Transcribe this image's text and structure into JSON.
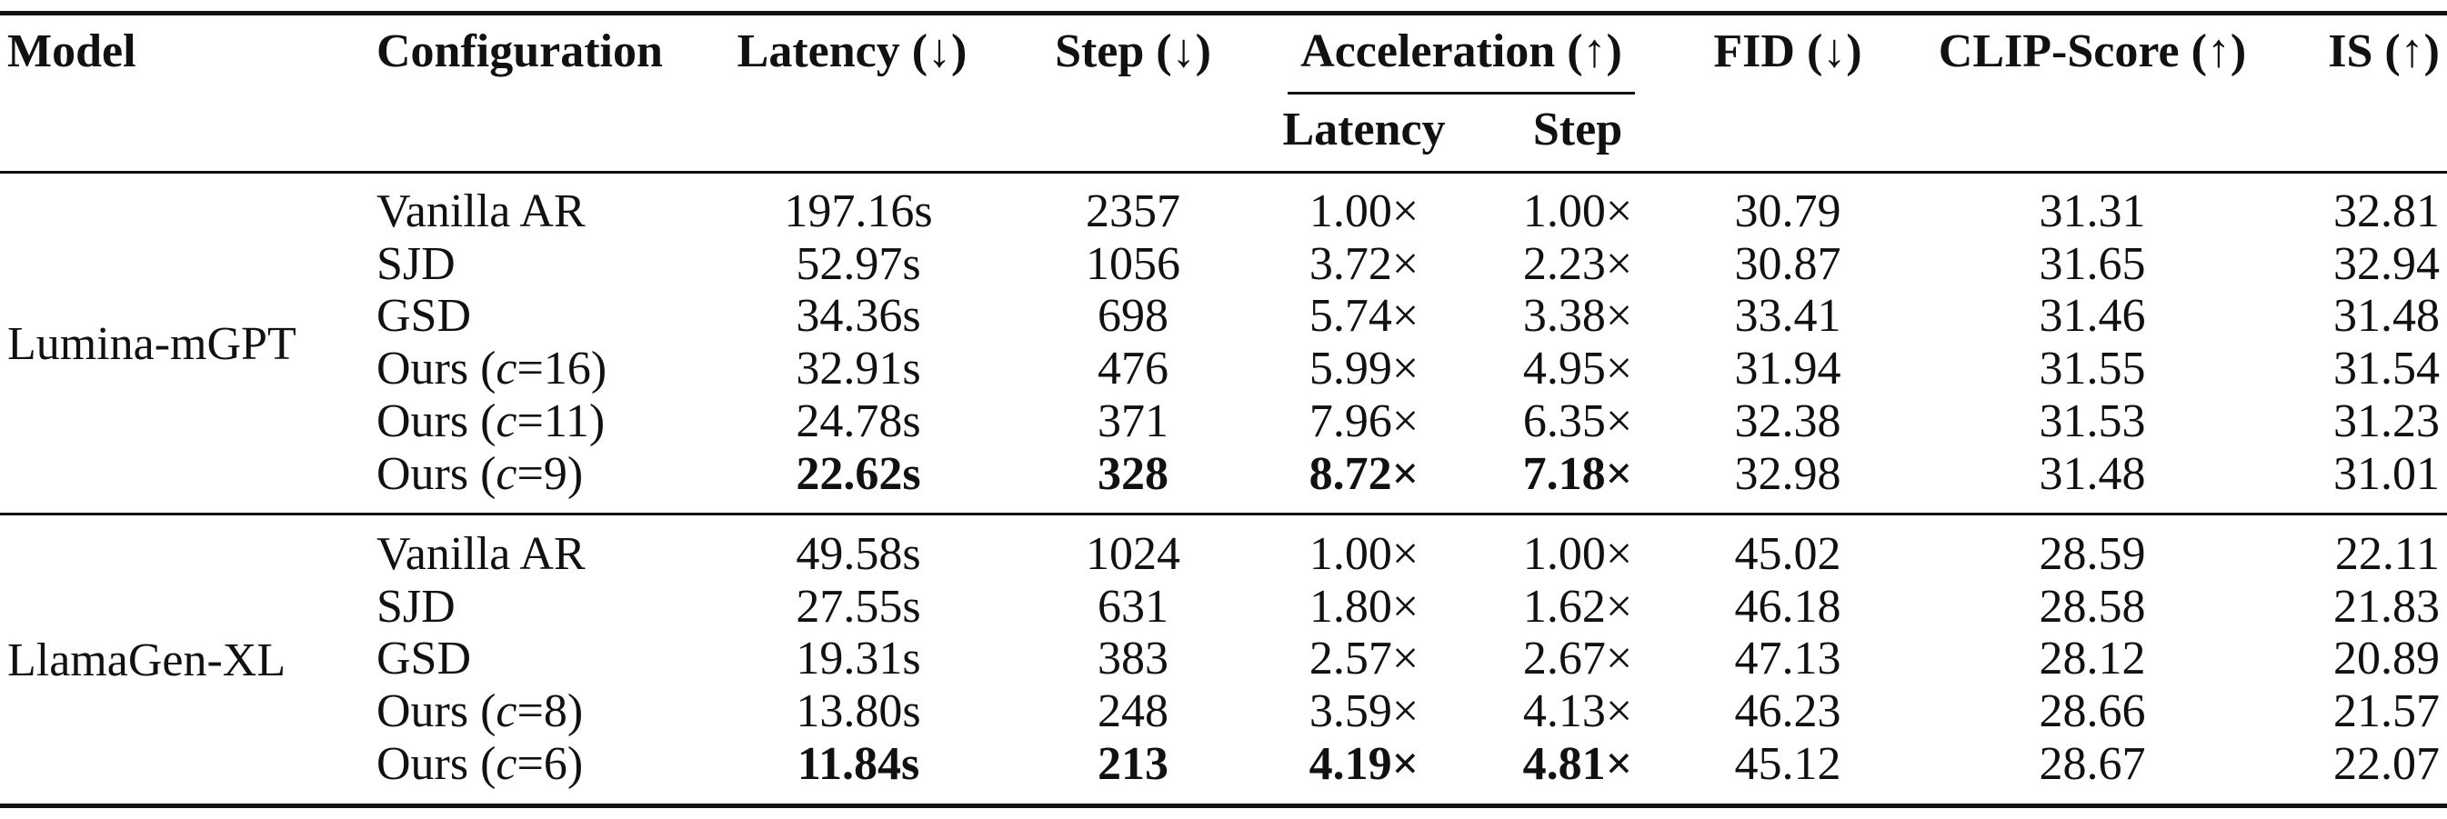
{
  "header": {
    "model": "Model",
    "configuration": "Configuration",
    "latency": "Latency (↓)",
    "step": "Step (↓)",
    "acceleration": "Acceleration (↑)",
    "acc_latency": "Latency",
    "acc_step": "Step",
    "fid": "FID (↓)",
    "clip": "CLIP-Score (↑)",
    "is": "IS (↑)"
  },
  "groups": [
    {
      "model": "Lumina-mGPT",
      "rows": [
        {
          "config": "Vanilla AR",
          "latency": "197.16s",
          "step": "2357",
          "acc_lat": "1.00×",
          "acc_step": "1.00×",
          "fid": "30.79",
          "clip": "31.31",
          "is": "32.81"
        },
        {
          "config": "SJD",
          "latency": "52.97s",
          "step": "1056",
          "acc_lat": "3.72×",
          "acc_step": "2.23×",
          "fid": "30.87",
          "clip": "31.65",
          "is": "32.94"
        },
        {
          "config": "GSD",
          "latency": "34.36s",
          "step": "698",
          "acc_lat": "5.74×",
          "acc_step": "3.38×",
          "fid": "33.41",
          "clip": "31.46",
          "is": "31.48"
        },
        {
          "config_prefix": "Ours (",
          "config_var": "c",
          "config_suffix": "=16)",
          "latency": "32.91s",
          "step": "476",
          "acc_lat": "5.99×",
          "acc_step": "4.95×",
          "fid": "31.94",
          "clip": "31.55",
          "is": "31.54"
        },
        {
          "config_prefix": "Ours (",
          "config_var": "c",
          "config_suffix": "=11)",
          "latency": "24.78s",
          "step": "371",
          "acc_lat": "7.96×",
          "acc_step": "6.35×",
          "fid": "32.38",
          "clip": "31.53",
          "is": "31.23"
        },
        {
          "config_prefix": "Ours (",
          "config_var": "c",
          "config_suffix": "=9)",
          "latency": "22.62s",
          "step": "328",
          "acc_lat": "8.72×",
          "acc_step": "7.18×",
          "fid": "32.98",
          "clip": "31.48",
          "is": "31.01"
        }
      ]
    },
    {
      "model": "LlamaGen-XL",
      "rows": [
        {
          "config": "Vanilla AR",
          "latency": "49.58s",
          "step": "1024",
          "acc_lat": "1.00×",
          "acc_step": "1.00×",
          "fid": "45.02",
          "clip": "28.59",
          "is": "22.11"
        },
        {
          "config": "SJD",
          "latency": "27.55s",
          "step": "631",
          "acc_lat": "1.80×",
          "acc_step": "1.62×",
          "fid": "46.18",
          "clip": "28.58",
          "is": "21.83"
        },
        {
          "config": "GSD",
          "latency": "19.31s",
          "step": "383",
          "acc_lat": "2.57×",
          "acc_step": "2.67×",
          "fid": "47.13",
          "clip": "28.12",
          "is": "20.89"
        },
        {
          "config_prefix": "Ours (",
          "config_var": "c",
          "config_suffix": "=8)",
          "latency": "13.80s",
          "step": "248",
          "acc_lat": "3.59×",
          "acc_step": "4.13×",
          "fid": "46.23",
          "clip": "28.66",
          "is": "21.57"
        },
        {
          "config_prefix": "Ours (",
          "config_var": "c",
          "config_suffix": "=6)",
          "latency": "11.84s",
          "step": "213",
          "acc_lat": "4.19×",
          "acc_step": "4.81×",
          "fid": "45.12",
          "clip": "28.67",
          "is": "22.07"
        }
      ]
    }
  ]
}
